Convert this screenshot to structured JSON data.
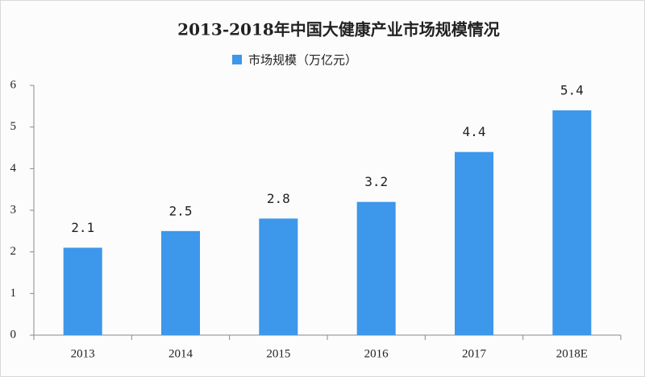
{
  "chart_data": {
    "type": "bar",
    "title": "2013-2018年中国大健康产业市场规模情况",
    "categories": [
      "2013",
      "2014",
      "2015",
      "2016",
      "2017",
      "2018E"
    ],
    "series": [
      {
        "name": "市场规模（万亿元）",
        "color": "#3d97ea",
        "values": [
          2.1,
          2.5,
          2.8,
          3.2,
          4.4,
          5.4
        ]
      }
    ],
    "ylim": [
      0,
      6
    ],
    "yticks": [
      0,
      1,
      2,
      3,
      4,
      5,
      6
    ],
    "grid": false,
    "legend": "top"
  }
}
